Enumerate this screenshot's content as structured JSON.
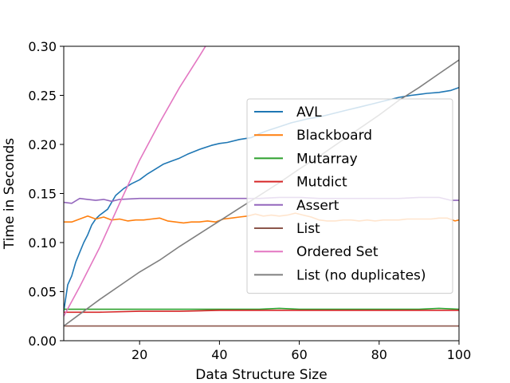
{
  "chart_data": {
    "type": "line",
    "title": "",
    "xlabel": "Data Structure Size",
    "ylabel": "Time in Seconds",
    "xlim": [
      1,
      100
    ],
    "ylim": [
      0,
      0.3
    ],
    "xticks": [
      20,
      40,
      60,
      80,
      100
    ],
    "xtick_labels": [
      "20",
      "40",
      "60",
      "80",
      "100"
    ],
    "yticks": [
      0.0,
      0.05,
      0.1,
      0.15,
      0.2,
      0.25,
      0.3
    ],
    "ytick_labels": [
      "0.00",
      "0.05",
      "0.10",
      "0.15",
      "0.20",
      "0.25",
      "0.30"
    ],
    "grid": false,
    "legend_position": "center-right",
    "series": [
      {
        "name": "AVL",
        "color": "#1f77b4",
        "x": [
          1,
          2,
          3,
          4,
          5,
          6,
          7,
          8,
          9,
          10,
          12,
          14,
          16,
          18,
          20,
          22,
          24,
          26,
          28,
          30,
          32,
          35,
          38,
          40,
          42,
          45,
          48,
          50,
          52,
          55,
          58,
          60,
          62,
          65,
          68,
          70,
          72,
          75,
          78,
          80,
          82,
          85,
          88,
          90,
          92,
          95,
          98,
          100
        ],
        "y": [
          0.03,
          0.057,
          0.066,
          0.08,
          0.09,
          0.1,
          0.108,
          0.118,
          0.124,
          0.128,
          0.134,
          0.148,
          0.155,
          0.16,
          0.164,
          0.17,
          0.175,
          0.18,
          0.183,
          0.186,
          0.19,
          0.195,
          0.199,
          0.201,
          0.202,
          0.205,
          0.207,
          0.211,
          0.214,
          0.218,
          0.222,
          0.224,
          0.226,
          0.228,
          0.231,
          0.233,
          0.235,
          0.238,
          0.241,
          0.243,
          0.245,
          0.248,
          0.25,
          0.251,
          0.252,
          0.253,
          0.255,
          0.258
        ]
      },
      {
        "name": "Blackboard",
        "color": "#ff7f0e",
        "x": [
          1,
          3,
          5,
          7,
          9,
          11,
          13,
          15,
          17,
          19,
          21,
          23,
          25,
          27,
          29,
          31,
          33,
          35,
          37,
          39,
          41,
          43,
          45,
          47,
          49,
          51,
          53,
          55,
          57,
          59,
          61,
          63,
          65,
          67,
          69,
          71,
          73,
          75,
          77,
          79,
          81,
          83,
          85,
          87,
          89,
          91,
          93,
          95,
          97,
          99,
          100
        ],
        "y": [
          0.121,
          0.121,
          0.124,
          0.127,
          0.124,
          0.126,
          0.123,
          0.124,
          0.122,
          0.123,
          0.123,
          0.124,
          0.125,
          0.122,
          0.121,
          0.12,
          0.121,
          0.121,
          0.122,
          0.121,
          0.124,
          0.125,
          0.126,
          0.127,
          0.129,
          0.127,
          0.128,
          0.127,
          0.128,
          0.13,
          0.128,
          0.126,
          0.123,
          0.122,
          0.122,
          0.123,
          0.123,
          0.122,
          0.123,
          0.122,
          0.123,
          0.123,
          0.123,
          0.124,
          0.124,
          0.124,
          0.124,
          0.125,
          0.125,
          0.122,
          0.123
        ]
      },
      {
        "name": "Mutarray",
        "color": "#2ca02c",
        "x": [
          1,
          10,
          20,
          30,
          40,
          50,
          55,
          60,
          70,
          80,
          90,
          95,
          100
        ],
        "y": [
          0.032,
          0.032,
          0.032,
          0.032,
          0.032,
          0.032,
          0.033,
          0.032,
          0.032,
          0.032,
          0.032,
          0.033,
          0.032
        ]
      },
      {
        "name": "Mutdict",
        "color": "#d62728",
        "x": [
          1,
          10,
          20,
          30,
          40,
          50,
          60,
          70,
          80,
          90,
          100
        ],
        "y": [
          0.029,
          0.029,
          0.03,
          0.03,
          0.031,
          0.031,
          0.031,
          0.031,
          0.031,
          0.031,
          0.031
        ]
      },
      {
        "name": "Assert",
        "color": "#9467bd",
        "x": [
          1,
          3,
          5,
          7,
          9,
          11,
          13,
          15,
          20,
          25,
          30,
          35,
          40,
          45,
          50,
          55,
          60,
          65,
          70,
          75,
          80,
          85,
          90,
          95,
          98,
          100
        ],
        "y": [
          0.141,
          0.14,
          0.145,
          0.144,
          0.143,
          0.144,
          0.142,
          0.144,
          0.145,
          0.145,
          0.145,
          0.145,
          0.145,
          0.145,
          0.145,
          0.146,
          0.146,
          0.145,
          0.145,
          0.145,
          0.145,
          0.145,
          0.146,
          0.146,
          0.143,
          0.143
        ]
      },
      {
        "name": "List",
        "color": "#8c564b",
        "x": [
          1,
          10,
          20,
          30,
          40,
          50,
          60,
          70,
          80,
          90,
          100
        ],
        "y": [
          0.015,
          0.015,
          0.015,
          0.015,
          0.015,
          0.015,
          0.015,
          0.015,
          0.015,
          0.015,
          0.015
        ]
      },
      {
        "name": "Ordered Set",
        "color": "#e377c2",
        "x": [
          1,
          5,
          10,
          15,
          20,
          25,
          30,
          35,
          36.5
        ],
        "y": [
          0.025,
          0.055,
          0.095,
          0.14,
          0.184,
          0.222,
          0.258,
          0.29,
          0.3
        ]
      },
      {
        "name": "List (no duplicates)",
        "color": "#7f7f7f",
        "x": [
          1,
          5,
          10,
          15,
          20,
          25,
          30,
          35,
          40,
          45,
          50,
          55,
          60,
          65,
          70,
          75,
          80,
          85,
          90,
          95,
          100
        ],
        "y": [
          0.015,
          0.027,
          0.042,
          0.056,
          0.07,
          0.082,
          0.096,
          0.109,
          0.122,
          0.135,
          0.148,
          0.161,
          0.175,
          0.188,
          0.202,
          0.216,
          0.23,
          0.245,
          0.258,
          0.272,
          0.286
        ]
      }
    ]
  }
}
